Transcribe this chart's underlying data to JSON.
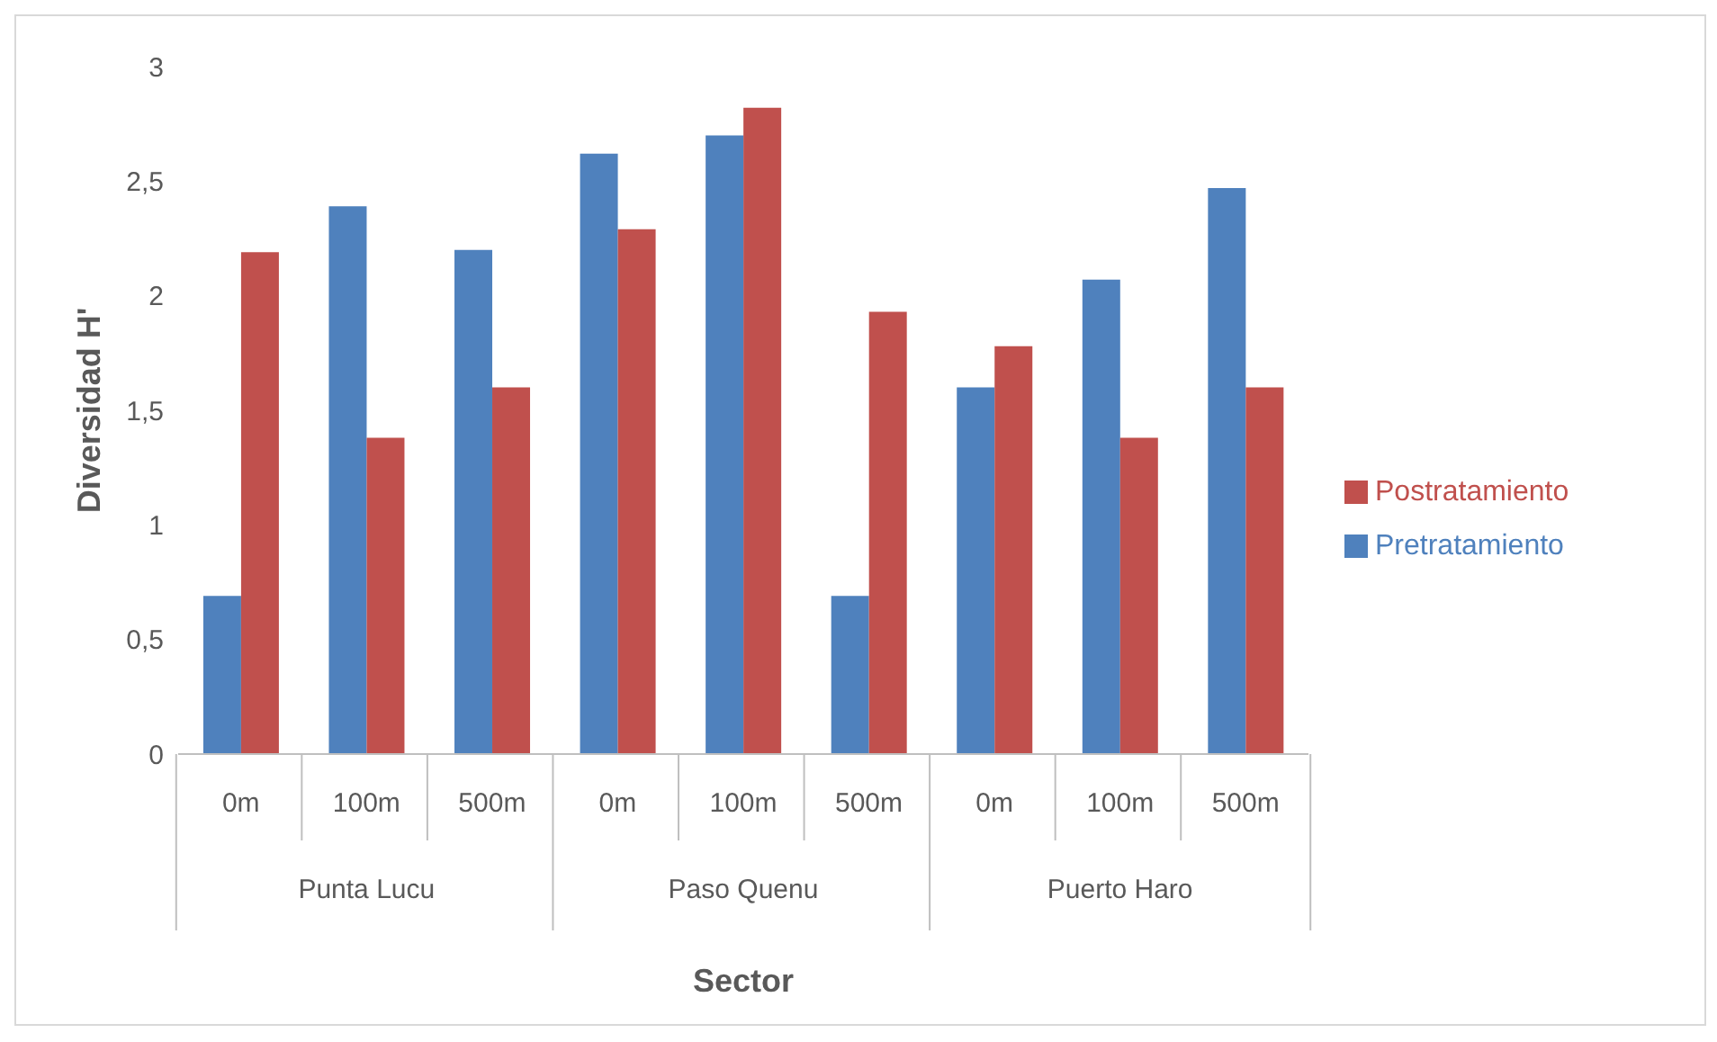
{
  "chart_data": {
    "type": "bar",
    "xlabel": "Sector",
    "ylabel": "Diversidad H'",
    "categories": [
      "0m",
      "100m",
      "500m",
      "0m",
      "100m",
      "500m",
      "0m",
      "100m",
      "500m"
    ],
    "annotations": [
      "Punta Lucu",
      "Paso Quenu",
      "Puerto Haro"
    ],
    "series": [
      {
        "name": "Pretratamiento",
        "color": "#4f81bd",
        "values": [
          0.69,
          2.39,
          2.2,
          2.62,
          2.7,
          0.69,
          1.6,
          2.07,
          2.47
        ]
      },
      {
        "name": "Postratamiento",
        "color": "#c0504d",
        "values": [
          2.19,
          1.38,
          1.6,
          2.29,
          2.82,
          1.93,
          1.78,
          1.38,
          1.6
        ]
      }
    ],
    "ylim": [
      0,
      3
    ],
    "yticks": [
      0,
      {
        "value": 0.5,
        "label": "0,5"
      },
      1,
      {
        "value": 1.5,
        "label": "1,5"
      },
      2,
      {
        "value": 2.5,
        "label": "2,5"
      },
      3
    ],
    "grid": false,
    "legend": "right"
  }
}
